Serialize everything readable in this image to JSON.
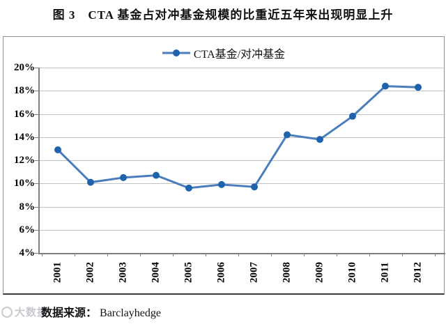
{
  "page": {
    "title": "图 3　CTA 基金占对冲基金规模的比重近五年来出现明显上升"
  },
  "legend": {
    "label": "CTA基金/对冲基金"
  },
  "source": {
    "label": "数据来源：",
    "value": "Barclayhedge"
  },
  "watermark": {
    "text": "大数据"
  },
  "colors": {
    "line": "#4a7ebb",
    "marker": "#1f63ad",
    "grid": "#c3c3c3",
    "axis": "#7f7f7f",
    "text": "#000000"
  },
  "chart_data": {
    "type": "line",
    "title": "图 3　CTA 基金占对冲基金规模的比重近五年来出现明显上升",
    "x": [
      "2001",
      "2002",
      "2003",
      "2004",
      "2005",
      "2006",
      "2007",
      "2008",
      "2009",
      "2010",
      "2011",
      "2012"
    ],
    "series": [
      {
        "name": "CTA基金/对冲基金",
        "values": [
          12.9,
          10.1,
          10.5,
          10.7,
          9.6,
          9.9,
          9.7,
          14.2,
          13.8,
          15.8,
          18.4,
          18.3
        ]
      }
    ],
    "xlabel": "",
    "ylabel": "",
    "ylim": [
      4,
      20
    ],
    "ytick_step": 2,
    "yticks": [
      "20%",
      "18%",
      "16%",
      "14%",
      "12%",
      "10%",
      "8%",
      "6%",
      "4%"
    ],
    "grid": true,
    "legend_position": "top-center",
    "source": "数据来源：Barclayhedge"
  }
}
